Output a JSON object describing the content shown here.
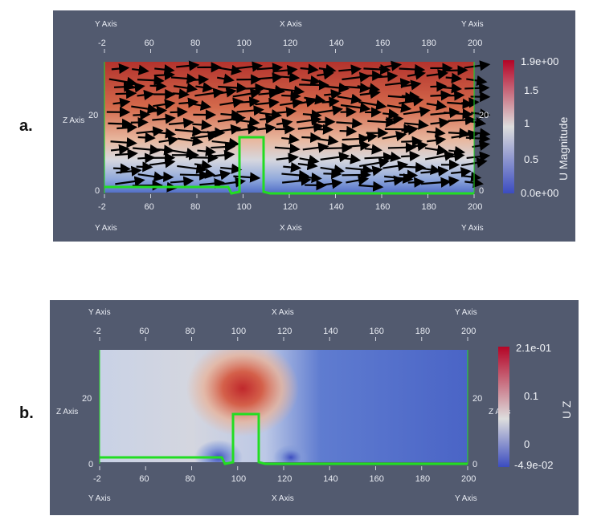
{
  "panels": [
    {
      "label": "a.",
      "axis_labels": {
        "y_axis": "Y Axis",
        "x_axis": "X Axis",
        "z_axis": "Z Axis"
      },
      "x_ticks": [
        "-2",
        "60",
        "80",
        "100",
        "120",
        "140",
        "160",
        "180",
        "200"
      ],
      "z_ticks": [
        "0",
        "20"
      ],
      "colorbar": {
        "title": "U Magnitude",
        "max_label": "1.9e+00",
        "min_label": "0.0e+00",
        "ticks": [
          "1.5",
          "1",
          "0.5"
        ]
      },
      "colors": {
        "high": "#b4332d",
        "low": "#3b4cc0",
        "mid": "#dddddd",
        "outline": "#22dd22",
        "arrows": "#000000"
      }
    },
    {
      "label": "b.",
      "axis_labels": {
        "y_axis": "Y Axis",
        "x_axis": "X Axis",
        "z_axis": "Z Axis"
      },
      "x_ticks": [
        "-2",
        "60",
        "80",
        "100",
        "120",
        "140",
        "160",
        "180",
        "200"
      ],
      "z_ticks": [
        "0",
        "20"
      ],
      "colorbar": {
        "title": "U Z",
        "max_label": "2.1e-01",
        "min_label": "-4.9e-02",
        "ticks": [
          "0.1",
          "0"
        ]
      },
      "colors": {
        "high": "#b40426",
        "low": "#3b4cc0",
        "mid": "#dddddd",
        "outline": "#22dd22"
      }
    }
  ]
}
